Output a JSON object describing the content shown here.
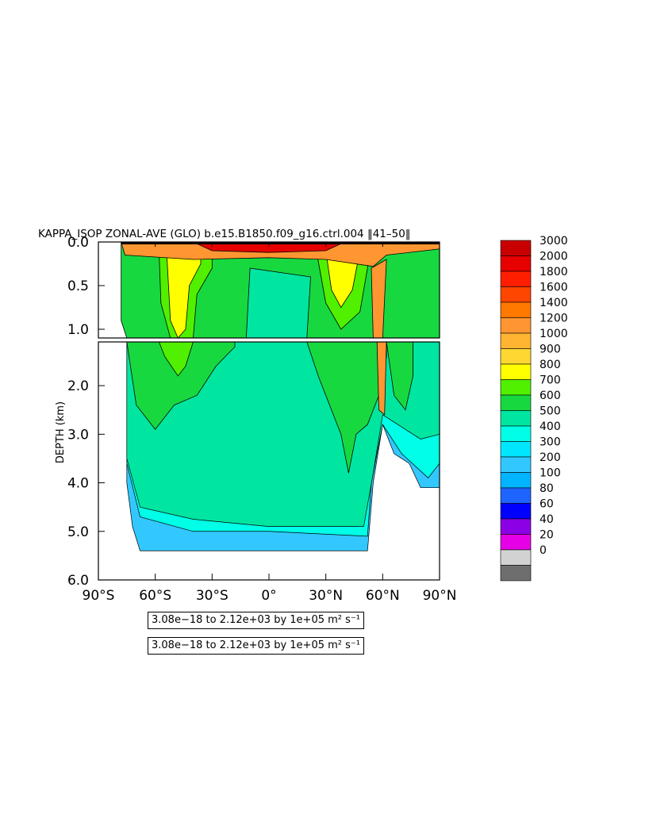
{
  "chart_data": {
    "type": "heatmap",
    "title": "KAPPA_ISOP ZONAL-AVE (GLO) b.e15.B1850.f09_g16.ctrl.004 ‖41–50‖",
    "ylabel": "DEPTH (km)",
    "xlabel": "",
    "x_ticks": [
      "90°S",
      "60°S",
      "30°S",
      "0°",
      "30°N",
      "60°N",
      "90°N"
    ],
    "x_tick_values": [
      -90,
      -60,
      -30,
      0,
      30,
      60,
      90
    ],
    "xlim": [
      -90,
      90
    ],
    "y_ticks_upper": [
      "0.0",
      "0.5",
      "1.0"
    ],
    "y_tick_values_upper": [
      0,
      0.5,
      1.0
    ],
    "y_ticks_lower": [
      "2.0",
      "3.0",
      "4.0",
      "5.0",
      "6.0"
    ],
    "y_tick_values_lower": [
      2,
      3,
      4,
      5,
      6
    ],
    "ylim_upper": [
      0,
      1.1
    ],
    "ylim_lower": [
      1.1,
      6
    ],
    "colorbar": {
      "levels": [
        "3000",
        "2000",
        "1800",
        "1600",
        "1400",
        "1200",
        "1000",
        "900",
        "800",
        "700",
        "600",
        "500",
        "400",
        "300",
        "200",
        "100",
        "80",
        "60",
        "40",
        "20",
        "0"
      ],
      "colors": [
        "#c80000",
        "#e60000",
        "#ff1e00",
        "#ff4600",
        "#ff7800",
        "#ff9632",
        "#ffb432",
        "#ffd732",
        "#ffff00",
        "#50f000",
        "#18d840",
        "#00e6a0",
        "#00ffe6",
        "#00e6ff",
        "#32c8ff",
        "#00b4ff",
        "#1e64ff",
        "#0000ff",
        "#8c00e6",
        "#e600e6",
        "#d2d2d2",
        "#6e6e6e"
      ]
    },
    "field_colors": {
      "surface_orange": "#ff9632",
      "surface_red": "#e60000",
      "yellow": "#ffff00",
      "green": "#50f000",
      "dark_green": "#18d840",
      "aqua": "#00e6a0",
      "cyan": "#00ffe6",
      "light_blue": "#32c8ff"
    },
    "info_lines": [
      "3.08e−18 to 2.12e+03 by 1e+05 m² s⁻¹",
      "3.08e−18 to 2.12e+03 by 1e+05 m² s⁻¹"
    ]
  }
}
